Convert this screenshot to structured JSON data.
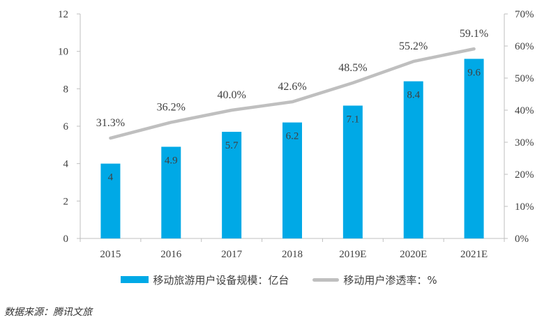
{
  "chart_data": {
    "type": "bar",
    "categories": [
      "2015",
      "2016",
      "2017",
      "2018",
      "2019E",
      "2020E",
      "2021E"
    ],
    "series": [
      {
        "name": "移动旅游用户设备规模：亿台",
        "type": "bar",
        "axis": "left",
        "values": [
          4,
          4.9,
          5.7,
          6.2,
          7.1,
          8.4,
          9.6
        ],
        "labels": [
          "4",
          "4.9",
          "5.7",
          "6.2",
          "7.1",
          "8.4",
          "9.6"
        ],
        "color": "#00A9E6"
      },
      {
        "name": "移动用户渗透率：%",
        "type": "line",
        "axis": "right",
        "values": [
          31.3,
          36.2,
          40.0,
          42.6,
          48.5,
          55.2,
          59.1
        ],
        "labels": [
          "31.3%",
          "36.2%",
          "40.0%",
          "42.6%",
          "48.5%",
          "55.2%",
          "59.1%"
        ],
        "color": "#BFBFBF"
      }
    ],
    "y_left": {
      "range": [
        0,
        12
      ],
      "ticks": [
        0,
        2,
        4,
        6,
        8,
        10,
        12
      ],
      "tick_labels": [
        "0",
        "2",
        "4",
        "6",
        "8",
        "10",
        "12"
      ]
    },
    "y_right": {
      "range": [
        0,
        70
      ],
      "ticks": [
        0,
        10,
        20,
        30,
        40,
        50,
        60,
        70
      ],
      "tick_labels": [
        "0%",
        "10%",
        "20%",
        "30%",
        "40%",
        "50%",
        "60%",
        "70%"
      ]
    },
    "grid": false,
    "legend_position": "bottom"
  },
  "source": "数据来源：腾讯文旅"
}
